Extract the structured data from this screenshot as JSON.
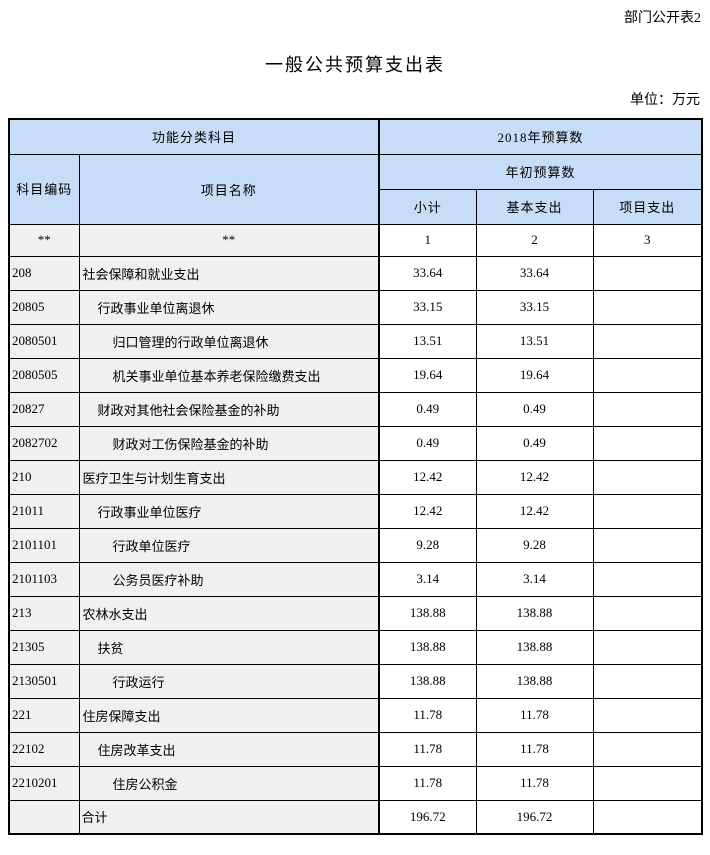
{
  "page": {
    "tag": "部门公开表2",
    "title": "一般公共预算支出表",
    "unit_note": "单位：万元"
  },
  "colors": {
    "header_blue": "#c6dcf7",
    "label_gray": "#f0f0f0",
    "border": "#000000"
  },
  "table": {
    "header": {
      "function_category": "功能分类科目",
      "budget_2018": "2018年预算数",
      "subject_code": "科目编码",
      "item_name": "项目名称",
      "initial_budget": "年初预算数",
      "subtotal": "小计",
      "basic_expenditure": "基本支出",
      "project_expenditure": "项目支出",
      "code_placeholder": "**",
      "name_placeholder": "**",
      "col_numbers": [
        "1",
        "2",
        "3"
      ]
    },
    "rows": [
      {
        "code": "208",
        "name": "社会保障和就业支出",
        "indent": 0,
        "subtotal": "33.64",
        "basic": "33.64",
        "project": ""
      },
      {
        "code": "20805",
        "name": "行政事业单位离退休",
        "indent": 1,
        "subtotal": "33.15",
        "basic": "33.15",
        "project": ""
      },
      {
        "code": "2080501",
        "name": "归口管理的行政单位离退休",
        "indent": 2,
        "subtotal": "13.51",
        "basic": "13.51",
        "project": ""
      },
      {
        "code": "2080505",
        "name": "机关事业单位基本养老保险缴费支出",
        "indent": 2,
        "subtotal": "19.64",
        "basic": "19.64",
        "project": ""
      },
      {
        "code": "20827",
        "name": "财政对其他社会保险基金的补助",
        "indent": 1,
        "subtotal": "0.49",
        "basic": "0.49",
        "project": ""
      },
      {
        "code": "2082702",
        "name": "财政对工伤保险基金的补助",
        "indent": 2,
        "subtotal": "0.49",
        "basic": "0.49",
        "project": ""
      },
      {
        "code": "210",
        "name": "医疗卫生与计划生育支出",
        "indent": 0,
        "subtotal": "12.42",
        "basic": "12.42",
        "project": ""
      },
      {
        "code": "21011",
        "name": "行政事业单位医疗",
        "indent": 1,
        "subtotal": "12.42",
        "basic": "12.42",
        "project": ""
      },
      {
        "code": "2101101",
        "name": "行政单位医疗",
        "indent": 2,
        "subtotal": "9.28",
        "basic": "9.28",
        "project": ""
      },
      {
        "code": "2101103",
        "name": "公务员医疗补助",
        "indent": 2,
        "subtotal": "3.14",
        "basic": "3.14",
        "project": ""
      },
      {
        "code": "213",
        "name": "农林水支出",
        "indent": 0,
        "subtotal": "138.88",
        "basic": "138.88",
        "project": ""
      },
      {
        "code": "21305",
        "name": "扶贫",
        "indent": 1,
        "subtotal": "138.88",
        "basic": "138.88",
        "project": ""
      },
      {
        "code": "2130501",
        "name": "行政运行",
        "indent": 2,
        "subtotal": "138.88",
        "basic": "138.88",
        "project": ""
      },
      {
        "code": "221",
        "name": "住房保障支出",
        "indent": 0,
        "subtotal": "11.78",
        "basic": "11.78",
        "project": ""
      },
      {
        "code": "22102",
        "name": "住房改革支出",
        "indent": 1,
        "subtotal": "11.78",
        "basic": "11.78",
        "project": ""
      },
      {
        "code": "2210201",
        "name": "住房公积金",
        "indent": 2,
        "subtotal": "11.78",
        "basic": "11.78",
        "project": ""
      }
    ],
    "total_row": {
      "code": "",
      "name": "合计",
      "subtotal": "196.72",
      "basic": "196.72",
      "project": ""
    }
  }
}
